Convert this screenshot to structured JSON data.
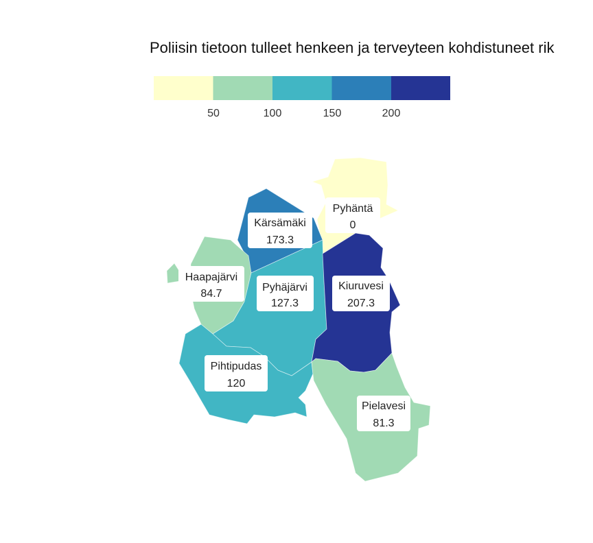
{
  "title": "Poliisin tietoon tulleet henkeen ja terveyteen kohdistuneet rik",
  "legend": {
    "colors": [
      "#ffffcc",
      "#a1dab4",
      "#41b6c4",
      "#2c7fb8",
      "#253494"
    ],
    "ticks": [
      "50",
      "100",
      "150",
      "200"
    ]
  },
  "regions": [
    {
      "name": "Pyhäntä",
      "value": "0",
      "color": "#ffffcc"
    },
    {
      "name": "Kärsämäki",
      "value": "173.3",
      "color": "#2c7fb8"
    },
    {
      "name": "Haapajärvi",
      "value": "84.7",
      "color": "#a1dab4"
    },
    {
      "name": "Pyhäjärvi",
      "value": "127.3",
      "color": "#41b6c4"
    },
    {
      "name": "Kiuruvesi",
      "value": "207.3",
      "color": "#253494"
    },
    {
      "name": "Pihtipudas",
      "value": "120",
      "color": "#41b6c4"
    },
    {
      "name": "Pielavesi",
      "value": "81.3",
      "color": "#a1dab4"
    }
  ]
}
